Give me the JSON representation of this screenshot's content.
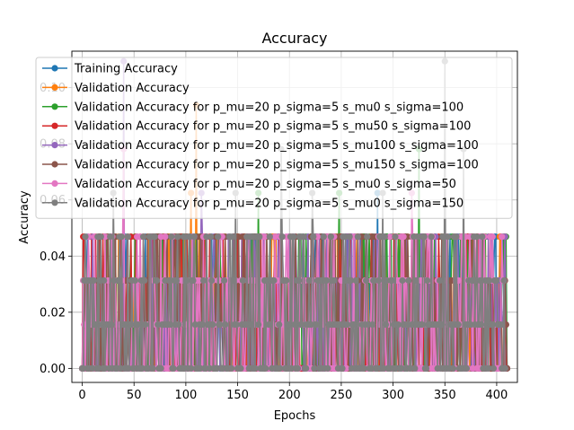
{
  "chart_data": {
    "type": "line",
    "title": "Accuracy",
    "xlabel": "Epochs",
    "ylabel": "Accuracy",
    "xlim": [
      -10,
      420
    ],
    "ylim": [
      -0.005,
      0.113
    ],
    "xticks": [
      0,
      50,
      100,
      150,
      200,
      250,
      300,
      350,
      400
    ],
    "xtick_labels": [
      "0",
      "50",
      "100",
      "150",
      "200",
      "250",
      "300",
      "350",
      "400"
    ],
    "yticks": [
      0.0,
      0.02,
      0.04,
      0.06,
      0.08,
      0.1
    ],
    "ytick_labels": [
      "0.00",
      "0.02",
      "0.04",
      "0.06",
      "0.08",
      "0.10"
    ],
    "grid": true,
    "legend_position": "top-left",
    "series": [
      {
        "name": "Training Accuracy",
        "color": "#1f77b4",
        "seed": 11,
        "levels": [
          0.0,
          0.0156,
          0.0313,
          0.0469
        ],
        "spikes": [
          [
            285,
            0.0625
          ]
        ],
        "last_x": 408
      },
      {
        "name": "Validation Accuracy",
        "color": "#ff7f0e",
        "seed": 23,
        "levels": [
          0.0,
          0.0156,
          0.0313,
          0.0469
        ],
        "spikes": [
          [
            105,
            0.0625
          ],
          [
            110,
            0.0938
          ]
        ],
        "last_x": 408
      },
      {
        "name": "Validation Accuracy for p_mu=20 p_sigma=5 s_mu0 s_sigma=100",
        "color": "#2ca02c",
        "seed": 37,
        "levels": [
          0.0,
          0.0156,
          0.0313,
          0.0469
        ],
        "spikes": [
          [
            170,
            0.0625
          ],
          [
            248,
            0.0625
          ],
          [
            325,
            0.0781
          ],
          [
            410,
            0.0625
          ]
        ],
        "last_x": 410
      },
      {
        "name": "Validation Accuracy for p_mu=20 p_sigma=5 s_mu50 s_sigma=100",
        "color": "#d62728",
        "seed": 41,
        "levels": [
          0.0,
          0.0156,
          0.0313,
          0.0469
        ],
        "spikes": [
          [
            90,
            0.0469
          ],
          [
            172,
            0.0469
          ]
        ],
        "last_x": 410
      },
      {
        "name": "Validation Accuracy for p_mu=20 p_sigma=5 s_mu100 s_sigma=100",
        "color": "#9467bd",
        "seed": 53,
        "levels": [
          0.0,
          0.0156,
          0.0313,
          0.0469
        ],
        "spikes": [
          [
            40,
            0.1094
          ],
          [
            115,
            0.0625
          ]
        ],
        "last_x": 410
      },
      {
        "name": "Validation Accuracy for p_mu=20 p_sigma=5 s_mu150 s_sigma=100",
        "color": "#8c564b",
        "seed": 67,
        "levels": [
          0.0,
          0.0156,
          0.0313,
          0.0469
        ],
        "spikes": [],
        "last_x": 410
      },
      {
        "name": "Validation Accuracy for p_mu=20 p_sigma=5 s_mu0 s_sigma=50",
        "color": "#e377c2",
        "seed": 71,
        "levels": [
          0.0,
          0.0156,
          0.0313,
          0.0469
        ],
        "spikes": [
          [
            40,
            0.0781
          ],
          [
            318,
            0.0625
          ]
        ],
        "last_x": 408
      },
      {
        "name": "Validation Accuracy for p_mu=20 p_sigma=5 s_mu0 s_sigma=150",
        "color": "#7f7f7f",
        "seed": 89,
        "levels": [
          0.0,
          0.0156,
          0.0313,
          0.0469
        ],
        "spikes": [
          [
            30,
            0.0625
          ],
          [
            148,
            0.0625
          ],
          [
            192,
            0.0781
          ],
          [
            222,
            0.0625
          ],
          [
            290,
            0.0625
          ],
          [
            350,
            0.1094
          ],
          [
            368,
            0.0781
          ]
        ],
        "last_x": 408
      }
    ]
  }
}
